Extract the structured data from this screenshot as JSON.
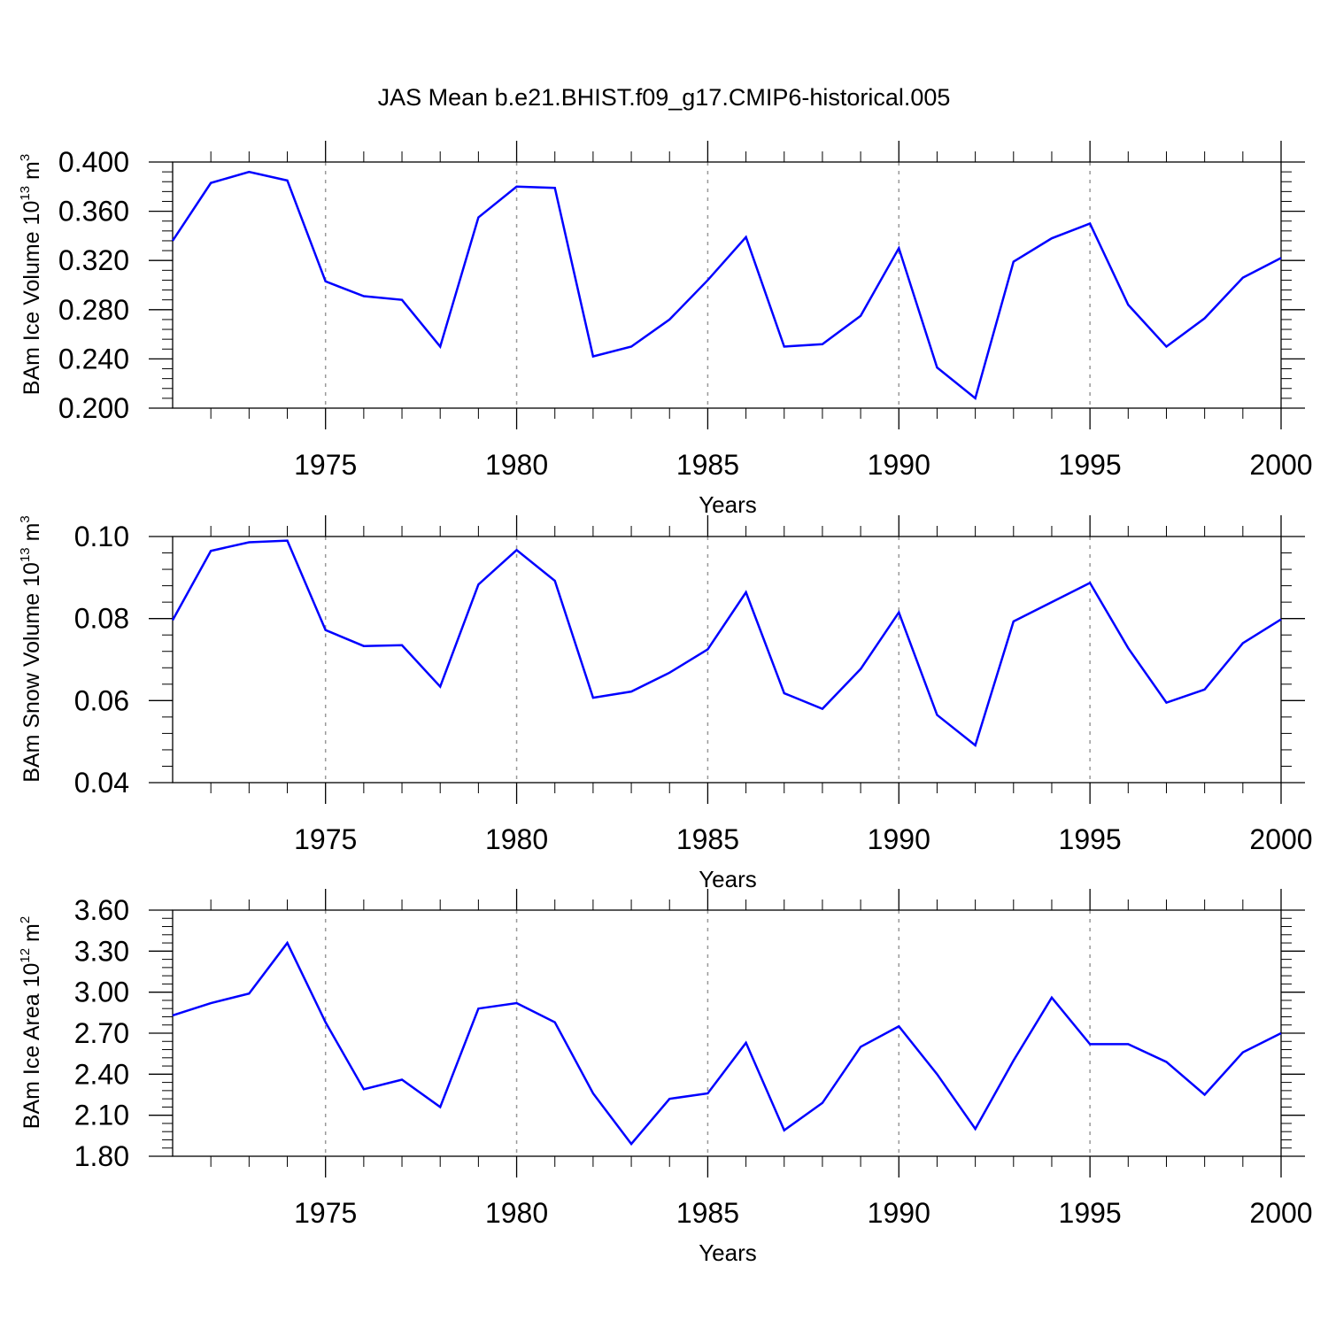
{
  "title": "JAS Mean b.e21.BHIST.f09_g17.CMIP6-historical.005",
  "colors": {
    "line": "#0000ff",
    "axis": "#000000",
    "grid": "#999999"
  },
  "chart_data": [
    {
      "type": "line",
      "xlabel": "Years",
      "ylabel_prefix": "BAm Ice Volume 10",
      "ylabel_exp": "13",
      "ylabel_unit": " m",
      "ylabel_unit_exp": "3",
      "xlim": [
        1971,
        2000
      ],
      "ylim": [
        0.2,
        0.4
      ],
      "yticks": [
        0.2,
        0.24,
        0.28,
        0.32,
        0.36,
        0.4
      ],
      "ytick_labels": [
        "0.200",
        "0.240",
        "0.280",
        "0.320",
        "0.360",
        "0.400"
      ],
      "xticks": [
        1975,
        1980,
        1985,
        1990,
        1995,
        2000
      ],
      "xtick_labels": [
        "1975",
        "1980",
        "1985",
        "1990",
        "1995",
        "2000"
      ],
      "x": [
        1971,
        1972,
        1973,
        1974,
        1975,
        1976,
        1977,
        1978,
        1979,
        1980,
        1981,
        1982,
        1983,
        1984,
        1985,
        1986,
        1987,
        1988,
        1989,
        1990,
        1991,
        1992,
        1993,
        1994,
        1995,
        1996,
        1997,
        1998,
        1999,
        2000
      ],
      "values": [
        0.336,
        0.383,
        0.392,
        0.385,
        0.303,
        0.291,
        0.288,
        0.25,
        0.355,
        0.38,
        0.379,
        0.242,
        0.25,
        0.272,
        0.304,
        0.339,
        0.25,
        0.252,
        0.275,
        0.33,
        0.233,
        0.208,
        0.319,
        0.338,
        0.35,
        0.284,
        0.25,
        0.273,
        0.306,
        0.322
      ]
    },
    {
      "type": "line",
      "xlabel": "Years",
      "ylabel_prefix": "BAm Snow Volume 10",
      "ylabel_exp": "13",
      "ylabel_unit": " m",
      "ylabel_unit_exp": "3",
      "xlim": [
        1971,
        2000
      ],
      "ylim": [
        0.04,
        0.1
      ],
      "yticks": [
        0.04,
        0.06,
        0.08,
        0.1
      ],
      "ytick_labels": [
        "0.04",
        "0.06",
        "0.08",
        "0.10"
      ],
      "xticks": [
        1975,
        1980,
        1985,
        1990,
        1995,
        2000
      ],
      "xtick_labels": [
        "1975",
        "1980",
        "1985",
        "1990",
        "1995",
        "2000"
      ],
      "x": [
        1971,
        1972,
        1973,
        1974,
        1975,
        1976,
        1977,
        1978,
        1979,
        1980,
        1981,
        1982,
        1983,
        1984,
        1985,
        1986,
        1987,
        1988,
        1989,
        1990,
        1991,
        1992,
        1993,
        1994,
        1995,
        1996,
        1997,
        1998,
        1999,
        2000
      ],
      "values": [
        0.0796,
        0.0965,
        0.0986,
        0.099,
        0.0772,
        0.0733,
        0.0735,
        0.0634,
        0.0883,
        0.0967,
        0.0892,
        0.0607,
        0.0622,
        0.0668,
        0.0725,
        0.0864,
        0.0618,
        0.058,
        0.0677,
        0.0815,
        0.0565,
        0.0491,
        0.0793,
        0.084,
        0.0887,
        0.0728,
        0.0595,
        0.0627,
        0.074,
        0.0798
      ]
    },
    {
      "type": "line",
      "xlabel": "Years",
      "ylabel_prefix": "BAm Ice Area 10",
      "ylabel_exp": "12",
      "ylabel_unit": " m",
      "ylabel_unit_exp": "2",
      "xlim": [
        1971,
        2000
      ],
      "ylim": [
        1.8,
        3.6
      ],
      "yticks": [
        1.8,
        2.1,
        2.4,
        2.7,
        3.0,
        3.3,
        3.6
      ],
      "ytick_labels": [
        "1.80",
        "2.10",
        "2.40",
        "2.70",
        "3.00",
        "3.30",
        "3.60"
      ],
      "xticks": [
        1975,
        1980,
        1985,
        1990,
        1995,
        2000
      ],
      "xtick_labels": [
        "1975",
        "1980",
        "1985",
        "1990",
        "1995",
        "2000"
      ],
      "x": [
        1971,
        1972,
        1973,
        1974,
        1975,
        1976,
        1977,
        1978,
        1979,
        1980,
        1981,
        1982,
        1983,
        1984,
        1985,
        1986,
        1987,
        1988,
        1989,
        1990,
        1991,
        1992,
        1993,
        1994,
        1995,
        1996,
        1997,
        1998,
        1999,
        2000
      ],
      "values": [
        2.83,
        2.92,
        2.99,
        3.36,
        2.78,
        2.29,
        2.36,
        2.16,
        2.88,
        2.92,
        2.78,
        2.26,
        1.89,
        2.22,
        2.26,
        2.63,
        1.99,
        2.19,
        2.6,
        2.75,
        2.4,
        2.0,
        2.5,
        2.96,
        2.62,
        2.62,
        2.49,
        2.25,
        2.56,
        2.7
      ]
    }
  ]
}
